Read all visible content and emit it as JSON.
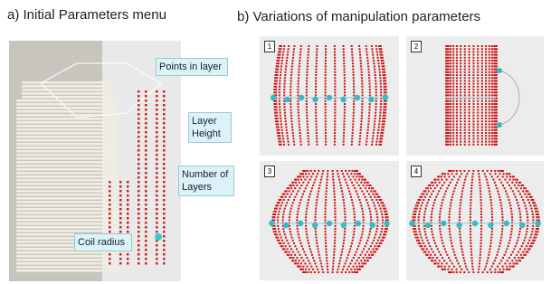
{
  "header": {
    "left": "a) Initial Parameters menu",
    "right": "b) Variations of manipulation parameters"
  },
  "labels": {
    "points": "Points in layer",
    "height": "Layer Height",
    "layers": "Number of Layers",
    "radius": "Coil radius"
  },
  "panels": [
    "1",
    "2",
    "3",
    "4"
  ]
}
